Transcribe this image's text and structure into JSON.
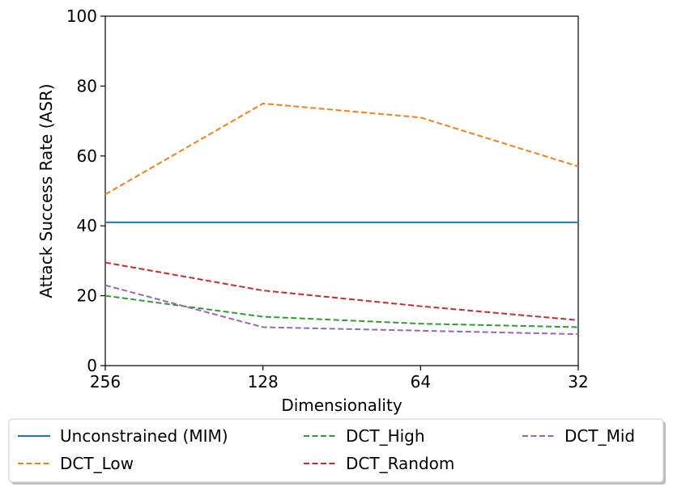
{
  "chart_data": {
    "type": "line",
    "title": "",
    "xlabel": "Dimensionality",
    "ylabel": "Attack Success Rate (ASR)",
    "categories": [
      "256",
      "128",
      "64",
      "32"
    ],
    "ylim": [
      0,
      100
    ],
    "yticks": [
      "0",
      "20",
      "40",
      "60",
      "80",
      "100"
    ],
    "grid": false,
    "legend_placement": "below",
    "series": [
      {
        "name": "Unconstrained (MIM)",
        "values": [
          41,
          41,
          41,
          41
        ],
        "color": "#1f77b4",
        "dash": "solid"
      },
      {
        "name": "DCT_Low",
        "values": [
          49,
          75,
          71,
          57
        ],
        "color": "#ff7f0e",
        "dash": "dashed"
      },
      {
        "name": "DCT_High",
        "values": [
          20,
          14,
          12,
          11
        ],
        "color": "#2ca02c",
        "dash": "dashed"
      },
      {
        "name": "DCT_Random",
        "values": [
          29.5,
          21.5,
          17,
          13
        ],
        "color": "#d62728",
        "dash": "dashed"
      },
      {
        "name": "DCT_Mid",
        "values": [
          23,
          11,
          10,
          9
        ],
        "color": "#9467bd",
        "dash": "dashed"
      }
    ]
  }
}
